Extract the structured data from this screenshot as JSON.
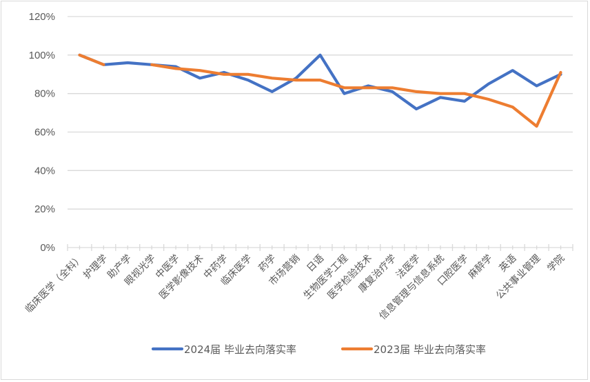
{
  "chart_data": {
    "type": "line",
    "title": "",
    "xlabel": "",
    "ylabel": "",
    "ylim": [
      0,
      1.2
    ],
    "yticks": [
      "0%",
      "20%",
      "40%",
      "60%",
      "80%",
      "100%",
      "120%"
    ],
    "grid": true,
    "legend_position": "bottom",
    "categories": [
      "临床医学（全科）",
      "护理学",
      "助产学",
      "眼视光学",
      "中医学",
      "医学影像技术",
      "中药学",
      "临床医学",
      "药学",
      "市场营销",
      "日语",
      "生物医学工程",
      "医学检验技术",
      "康复治疗学",
      "法医学",
      "信息管理与信息系统",
      "口腔医学",
      "麻醉学",
      "英语",
      "公共事业管理",
      "学院"
    ],
    "series": [
      {
        "name": "2024届 毕业去向落实率",
        "color": "#4472C4",
        "values": [
          1.0,
          0.95,
          0.96,
          0.95,
          0.94,
          0.88,
          0.91,
          0.87,
          0.81,
          0.88,
          1.0,
          0.8,
          0.84,
          0.81,
          0.72,
          0.78,
          0.76,
          0.85,
          0.92,
          0.84,
          0.9
        ]
      },
      {
        "name": "2023届 毕业去向落实率",
        "color": "#ED7D31",
        "values": [
          1.0,
          0.95,
          null,
          0.95,
          0.93,
          0.92,
          0.9,
          0.9,
          0.88,
          0.87,
          0.87,
          0.83,
          0.83,
          0.83,
          0.81,
          0.8,
          0.8,
          0.77,
          0.73,
          0.63,
          0.91
        ]
      }
    ]
  },
  "legend": {
    "items": [
      {
        "label": "2024届 毕业去向落实率",
        "color": "#4472C4"
      },
      {
        "label": "2023届 毕业去向落实率",
        "color": "#ED7D31"
      }
    ]
  },
  "style": {
    "grid_color": "#d9d9d9",
    "axis_color": "#d9d9d9",
    "text_color": "#595959"
  }
}
